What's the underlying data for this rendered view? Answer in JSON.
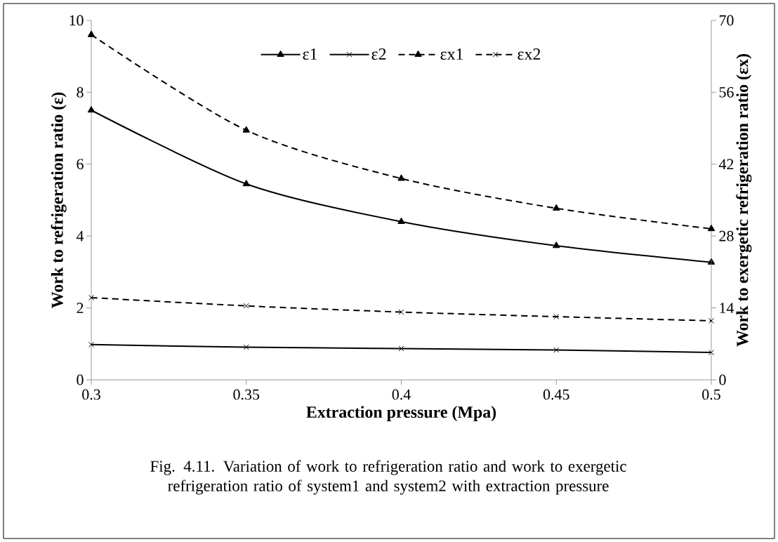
{
  "chart_data": {
    "type": "line",
    "xlabel": "Extraction  pressure (Mpa)",
    "ylabel": "Work  to refrigeration  ratio  (ε)",
    "y2label": "Work  to exergetic refrigeration  ratio  (εx)",
    "x": [
      0.3,
      0.35,
      0.4,
      0.45,
      0.5
    ],
    "xlim": [
      0.3,
      0.5
    ],
    "xticks": [
      0.3,
      0.35,
      0.4,
      0.45,
      0.5
    ],
    "ylim": [
      0,
      10
    ],
    "yticks": [
      0,
      2,
      4,
      6,
      8,
      10
    ],
    "y2lim": [
      0,
      70
    ],
    "y2ticks": [
      0,
      14,
      28,
      42,
      56,
      70
    ],
    "series": [
      {
        "name": "ε1",
        "color": "#000000",
        "marker": "triangle",
        "line_style": "solid",
        "values": [
          7.5,
          5.45,
          4.4,
          3.73,
          3.27
        ]
      },
      {
        "name": "ε2",
        "color": "#000000",
        "marker": "cross",
        "line_style": "solid",
        "values": [
          0.98,
          0.91,
          0.87,
          0.83,
          0.76
        ]
      },
      {
        "name": "εx1",
        "color": "#000000",
        "marker": "triangle",
        "line_style": "dashed",
        "axis": "y2",
        "values": [
          67.2,
          48.6,
          39.2,
          33.4,
          29.4
        ]
      },
      {
        "name": "εx2",
        "color": "#000000",
        "marker": "cross",
        "line_style": "dashed",
        "axis": "y2",
        "values": [
          16.0,
          14.4,
          13.2,
          12.3,
          11.5
        ]
      }
    ],
    "legend": "top",
    "grid": false,
    "annotations": [
      "Fig. 4.11. Variation  of work to refrigeration  ratio  and work to exergetic  refrigeration  ratio of system1 and system2  with extraction pressure"
    ]
  }
}
